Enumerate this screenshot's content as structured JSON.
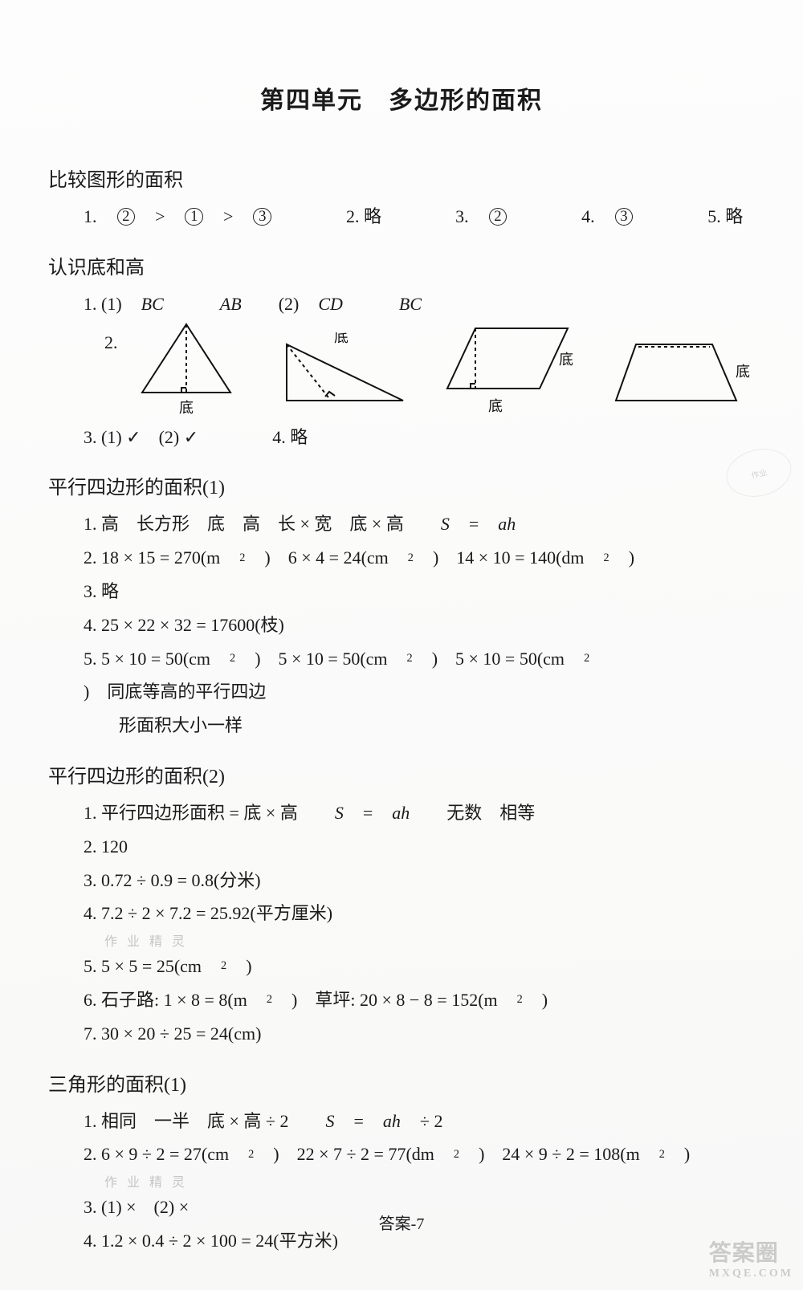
{
  "unit_title": "第四单元　多边形的面积",
  "sections": [
    {
      "title": "比较图形的面积",
      "lines": [
        [
          {
            "t": "1. "
          },
          {
            "circ": "2"
          },
          {
            "t": " > "
          },
          {
            "circ": "1"
          },
          {
            "t": " > "
          },
          {
            "circ": "3"
          },
          {
            "gap": true
          },
          {
            "t": "2. 略"
          },
          {
            "gap": true
          },
          {
            "t": "3. "
          },
          {
            "circ": "2"
          },
          {
            "gap": true
          },
          {
            "t": "4. "
          },
          {
            "circ": "3"
          },
          {
            "gap": true
          },
          {
            "t": "5. 略"
          }
        ]
      ]
    },
    {
      "title": "认识底和高",
      "lines": [
        [
          {
            "t": "1. (1) "
          },
          {
            "it": "BC"
          },
          {
            "t": "　"
          },
          {
            "it": "AB"
          },
          {
            "t": "　(2) "
          },
          {
            "it": "CD"
          },
          {
            "t": "　"
          },
          {
            "it": "BC"
          }
        ]
      ],
      "diagrams": {
        "q_label": "2.",
        "shapes": [
          {
            "type": "triangle_iso",
            "label_bottom": "底",
            "label_top": "底"
          },
          {
            "type": "triangle_right",
            "label_top": "底"
          },
          {
            "type": "parallelogram",
            "label_bottom": "底",
            "label_right": "底"
          },
          {
            "type": "trapezoid",
            "label_right": "底"
          }
        ],
        "stroke": "#111",
        "stroke_width": 2,
        "dash": "4 4"
      },
      "lines_after": [
        [
          {
            "t": "3. (1) ✓　(2) ✓"
          },
          {
            "gap": true
          },
          {
            "t": "4. 略"
          }
        ]
      ]
    },
    {
      "title": "平行四边形的面积(1)",
      "lines": [
        [
          {
            "t": "1. 高　长方形　底　高　长 × 宽　底 × 高　"
          },
          {
            "it": "S"
          },
          {
            "t": " = "
          },
          {
            "it": "ah"
          }
        ],
        [
          {
            "t": "2. 18 × 15 = 270(m"
          },
          {
            "sup": "2"
          },
          {
            "t": ")　6 × 4 = 24(cm"
          },
          {
            "sup": "2"
          },
          {
            "t": ")　14 × 10 = 140(dm"
          },
          {
            "sup": "2"
          },
          {
            "t": ")"
          }
        ],
        [
          {
            "t": "3. 略"
          }
        ],
        [
          {
            "t": "4. 25 × 22 × 32 = 17600(枝)"
          }
        ],
        [
          {
            "t": "5. 5 × 10 = 50(cm"
          },
          {
            "sup": "2"
          },
          {
            "t": ")　5 × 10 = 50(cm"
          },
          {
            "sup": "2"
          },
          {
            "t": ")　5 × 10 = 50(cm"
          },
          {
            "sup": "2"
          },
          {
            "t": ")　同底等高的平行四边"
          }
        ],
        [
          {
            "cont": true
          },
          {
            "t": "形面积大小一样"
          }
        ]
      ]
    },
    {
      "title": "平行四边形的面积(2)",
      "lines": [
        [
          {
            "t": "1. 平行四边形面积 = 底 × 高　"
          },
          {
            "it": "S"
          },
          {
            "t": " = "
          },
          {
            "it": "ah"
          },
          {
            "t": "　无数　相等"
          }
        ],
        [
          {
            "t": "2. 120"
          }
        ],
        [
          {
            "t": "3. 0.72 ÷ 0.9 = 0.8(分米)"
          }
        ],
        [
          {
            "t": "4. 7.2 ÷ 2 × 7.2 = 25.92(平方厘米)"
          }
        ],
        [
          {
            "t": "5. 5 × 5 = 25(cm"
          },
          {
            "sup": "2"
          },
          {
            "t": ")"
          }
        ],
        [
          {
            "t": "6. 石子路: 1 × 8 = 8(m"
          },
          {
            "sup": "2"
          },
          {
            "t": ")　草坪: 20 × 8 − 8 = 152(m"
          },
          {
            "sup": "2"
          },
          {
            "t": ")"
          }
        ],
        [
          {
            "t": "7. 30 × 20 ÷ 25 = 24(cm)"
          }
        ]
      ],
      "faint_before_index": 4,
      "faint_text": "作 业 精 灵"
    },
    {
      "title": "三角形的面积(1)",
      "lines": [
        [
          {
            "t": "1. 相同　一半　底 × 高 ÷ 2　"
          },
          {
            "it": "S"
          },
          {
            "t": "="
          },
          {
            "it": "ah"
          },
          {
            "t": " ÷ 2"
          }
        ],
        [
          {
            "t": "2. 6 × 9 ÷ 2 = 27(cm"
          },
          {
            "sup": "2"
          },
          {
            "t": ")　22 × 7 ÷ 2 = 77(dm"
          },
          {
            "sup": "2"
          },
          {
            "t": ")　24 × 9 ÷ 2 = 108(m"
          },
          {
            "sup": "2"
          },
          {
            "t": ")"
          }
        ],
        [
          {
            "t": "3. (1) ×　(2) ×"
          }
        ],
        [
          {
            "t": "4. 1.2 × 0.4 ÷ 2 × 100 = 24(平方米)"
          }
        ]
      ],
      "faint_before_index": 2,
      "faint_text": "作 业 精 灵"
    }
  ],
  "footer": "答案-7",
  "watermark_br_main": "答案圈",
  "watermark_br_sub": "MXQE.COM",
  "watermark_tr": "作业"
}
